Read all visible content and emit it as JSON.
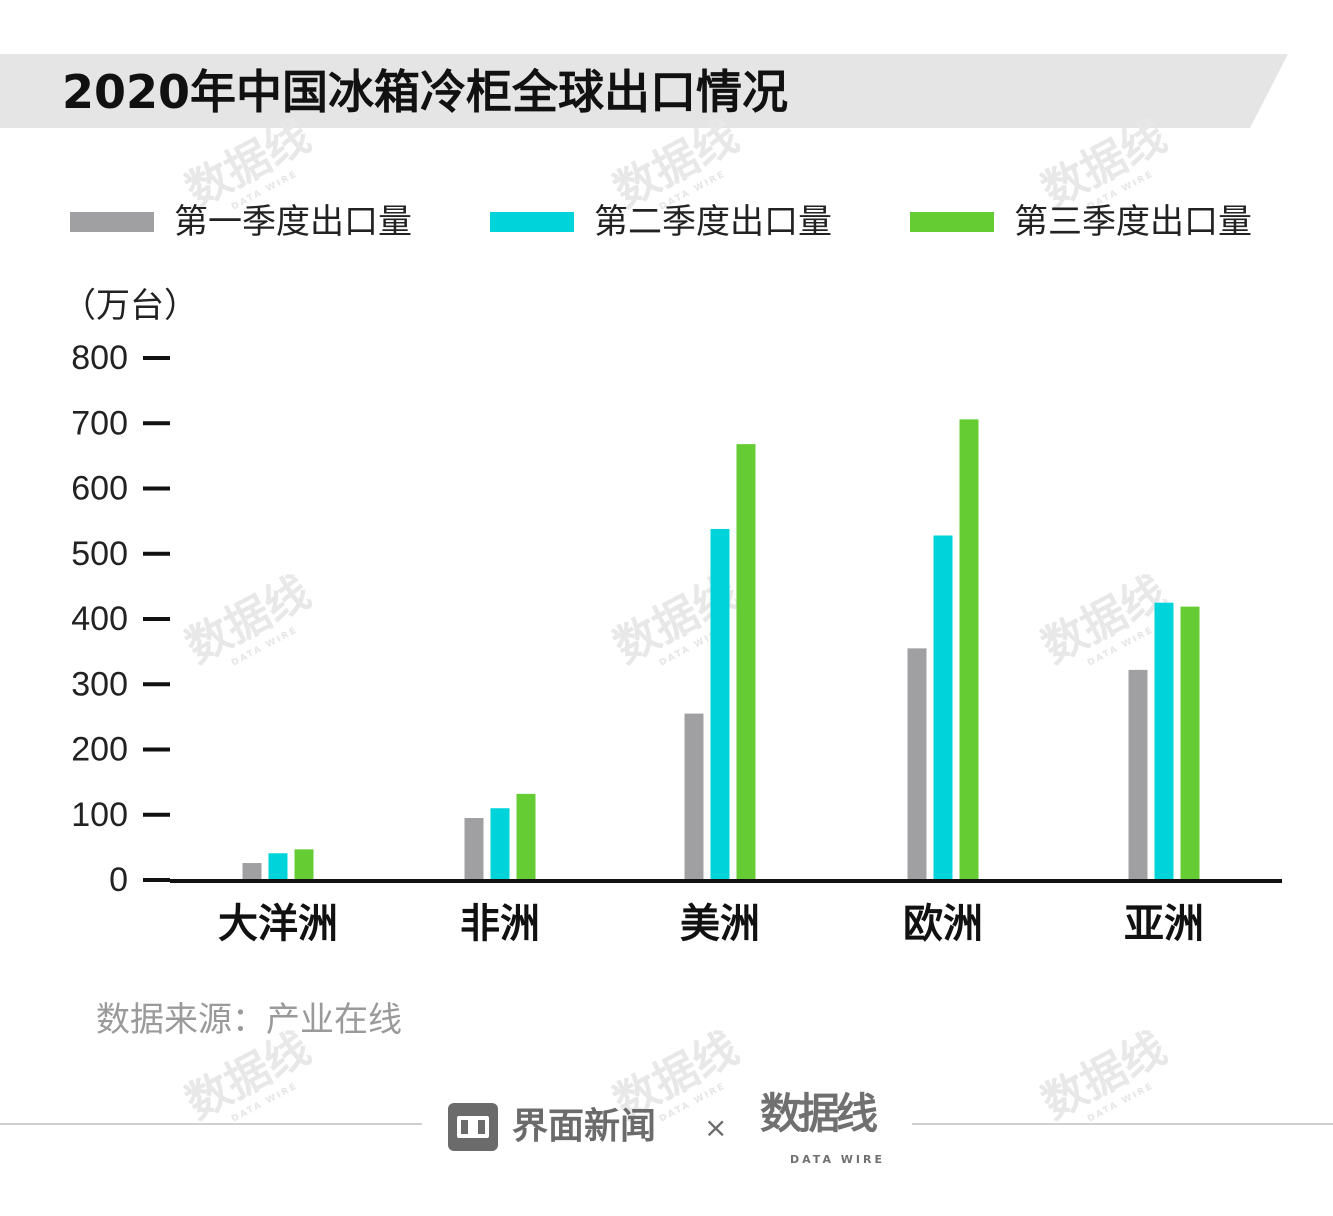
{
  "title": "2020年中国冰箱冷柜全球出口情况",
  "watermark": {
    "text": "数据线",
    "sub": "DATA WIRE"
  },
  "legend": [
    {
      "label": "第一季度出口量",
      "color": "#a0a0a2"
    },
    {
      "label": "第二季度出口量",
      "color": "#00d3da"
    },
    {
      "label": "第三季度出口量",
      "color": "#66cc33"
    }
  ],
  "unit_label": "（万台）",
  "source": "数据来源：产业在线",
  "footer": {
    "brand": "界面新闻",
    "times": "×",
    "partner": "数据线",
    "partner_sub": "DATA WIRE"
  },
  "chart_data": {
    "type": "bar",
    "title": "2020年中国冰箱冷柜全球出口情况",
    "xlabel": "",
    "ylabel": "（万台）",
    "ylim": [
      0,
      800
    ],
    "yticks": [
      0,
      100,
      200,
      300,
      400,
      500,
      600,
      700,
      800
    ],
    "categories": [
      "大洋洲",
      "非洲",
      "美洲",
      "欧洲",
      "亚洲"
    ],
    "series": [
      {
        "name": "第一季度出口量",
        "color": "#a0a0a2",
        "values": [
          26,
          95,
          255,
          355,
          322
        ]
      },
      {
        "name": "第二季度出口量",
        "color": "#00d3da",
        "values": [
          41,
          110,
          538,
          528,
          425
        ]
      },
      {
        "name": "第三季度出口量",
        "color": "#66cc33",
        "values": [
          47,
          132,
          668,
          706,
          419
        ]
      }
    ],
    "grid": false,
    "legend_position": "top"
  }
}
